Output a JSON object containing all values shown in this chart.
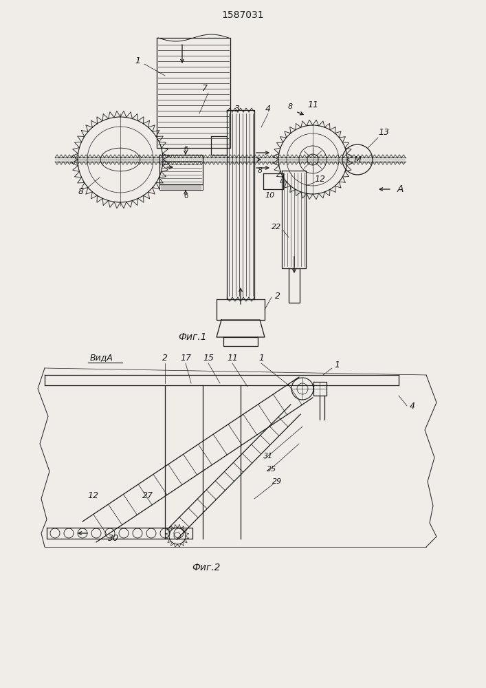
{
  "title": "1587031",
  "bg_color": "#f0ede8",
  "line_color": "#1a1a1a",
  "fig1_label": "Фиг.1",
  "fig2_label": "Фиг.2",
  "fig2_view_label": "ВидA"
}
